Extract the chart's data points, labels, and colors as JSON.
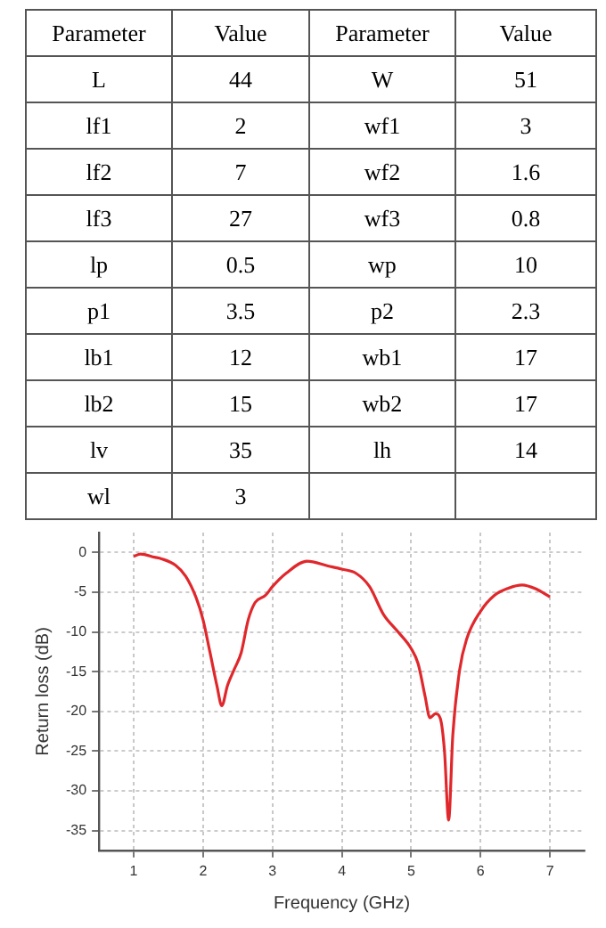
{
  "chart_data": [
    {
      "type": "other",
      "annotations": [
        "Parameter",
        "Value",
        "Parameter",
        "Value",
        "L",
        "44",
        "W",
        "51",
        "lf1",
        "2",
        "wf1",
        "3",
        "lf2",
        "7",
        "wf2",
        "1.6",
        "lf3",
        "27",
        "wf3",
        "0.8",
        "lp",
        "0.5",
        "wp",
        "10",
        "p1",
        "3.5",
        "p2",
        "2.3",
        "lb1",
        "12",
        "wb1",
        "17",
        "lb2",
        "15",
        "wb2",
        "17",
        "lv",
        "35",
        "lh",
        "14",
        "wl",
        "3"
      ]
    },
    {
      "type": "line",
      "xlabel": "Frequency (GHz)",
      "ylabel": "Return loss (dB)",
      "x": [
        1.0,
        1.1,
        1.3,
        1.4,
        1.6,
        1.75,
        1.9,
        2.0,
        2.1,
        2.2,
        2.27,
        2.35,
        2.45,
        2.55,
        2.65,
        2.75,
        2.9,
        3.0,
        3.2,
        3.5,
        3.8,
        4.0,
        4.2,
        4.4,
        4.6,
        4.8,
        5.0,
        5.1,
        5.2,
        5.27,
        5.35,
        5.42,
        5.48,
        5.54,
        5.6,
        5.7,
        5.8,
        6.0,
        6.2,
        6.4,
        6.6,
        6.8,
        7.0
      ],
      "series": [
        {
          "color": "#e0282c",
          "values": [
            -0.5,
            -0.2,
            -0.6,
            -0.8,
            -1.6,
            -3,
            -5.7,
            -8.5,
            -12.6,
            -16.8,
            -19.3,
            -16.8,
            -14.7,
            -12.6,
            -8.5,
            -6.3,
            -5.4,
            -4.3,
            -2.6,
            -1.1,
            -1.7,
            -2.1,
            -2.6,
            -4.3,
            -7.8,
            -9.9,
            -12.1,
            -14,
            -18.1,
            -20.8,
            -20.3,
            -20.9,
            -25,
            -33.7,
            -23,
            -14.7,
            -10.9,
            -7.4,
            -5.4,
            -4.5,
            -4.1,
            -4.6,
            -5.6
          ]
        }
      ],
      "xlim": [
        0.5,
        7.5
      ],
      "xticks": [
        1,
        2,
        3,
        4,
        5,
        6,
        7
      ],
      "ylim": [
        -37.5,
        2.5
      ],
      "yticks": [
        -35,
        -30,
        -25,
        -20,
        -15,
        -10,
        -5,
        0
      ],
      "grid": true,
      "legend": false,
      "marker": "none",
      "line_style": "solid"
    }
  ]
}
